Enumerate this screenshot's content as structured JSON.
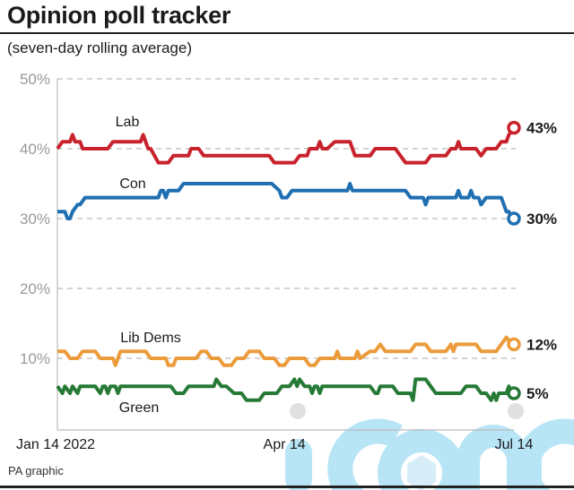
{
  "header": {
    "title": "Opinion poll tracker",
    "subtitle": "(seven-day rolling average)"
  },
  "footer": {
    "source": "PA graphic",
    "watermark": "iconic"
  },
  "chart_data": {
    "type": "line",
    "title": "Opinion poll tracker",
    "subtitle": "(seven-day rolling average)",
    "xlabel": "",
    "ylabel": "",
    "x_unit": "days since Jan 14 2022",
    "x_range": [
      0,
      181
    ],
    "ylim": [
      0,
      50
    ],
    "y_ticks": [
      10,
      20,
      30,
      40,
      50
    ],
    "y_tick_labels": [
      "10%",
      "20%",
      "30%",
      "40%",
      "50%"
    ],
    "x_ticks": [
      0,
      90,
      181
    ],
    "x_tick_labels": [
      "Jan 14 2022",
      "Apr 14",
      "Jul 14"
    ],
    "grid": "horizontal dashed",
    "legend": "inline labels",
    "series": [
      {
        "name": "Lab",
        "color": "#c8232c",
        "end_label": "43%",
        "end_value": 43,
        "points": [
          [
            0,
            40
          ],
          [
            2,
            41
          ],
          [
            5,
            41
          ],
          [
            6,
            42
          ],
          [
            7,
            41
          ],
          [
            9,
            41
          ],
          [
            10,
            40
          ],
          [
            20,
            40
          ],
          [
            22,
            41
          ],
          [
            33,
            41
          ],
          [
            34,
            42
          ],
          [
            35,
            41
          ],
          [
            36,
            40
          ],
          [
            37,
            40
          ],
          [
            40,
            38
          ],
          [
            44,
            38
          ],
          [
            46,
            39
          ],
          [
            52,
            39
          ],
          [
            53,
            40
          ],
          [
            56,
            40
          ],
          [
            58,
            39
          ],
          [
            84,
            39
          ],
          [
            86,
            38
          ],
          [
            94,
            38
          ],
          [
            96,
            39
          ],
          [
            99,
            39
          ],
          [
            100,
            40
          ],
          [
            103,
            40
          ],
          [
            104,
            41
          ],
          [
            105,
            40
          ],
          [
            107,
            40
          ],
          [
            110,
            41
          ],
          [
            116,
            41
          ],
          [
            118,
            39
          ],
          [
            124,
            39
          ],
          [
            126,
            40
          ],
          [
            134,
            40
          ],
          [
            136,
            39
          ],
          [
            138,
            38
          ],
          [
            146,
            38
          ],
          [
            148,
            39
          ],
          [
            154,
            39
          ],
          [
            156,
            40
          ],
          [
            158,
            40
          ],
          [
            159,
            41
          ],
          [
            160,
            40
          ],
          [
            166,
            40
          ],
          [
            168,
            39
          ],
          [
            170,
            40
          ],
          [
            174,
            40
          ],
          [
            176,
            41
          ],
          [
            178,
            41
          ],
          [
            179,
            42
          ],
          [
            181,
            43
          ]
        ]
      },
      {
        "name": "Con",
        "color": "#1f6fb2",
        "end_label": "30%",
        "end_value": 30,
        "points": [
          [
            0,
            31
          ],
          [
            3,
            31
          ],
          [
            4,
            30
          ],
          [
            5,
            30
          ],
          [
            6,
            31
          ],
          [
            8,
            32
          ],
          [
            9,
            32
          ],
          [
            11,
            33
          ],
          [
            40,
            33
          ],
          [
            41,
            34
          ],
          [
            42,
            34
          ],
          [
            43,
            33
          ],
          [
            44,
            34
          ],
          [
            48,
            34
          ],
          [
            50,
            35
          ],
          [
            85,
            35
          ],
          [
            88,
            34
          ],
          [
            89,
            33
          ],
          [
            91,
            33
          ],
          [
            93,
            34
          ],
          [
            115,
            34
          ],
          [
            116,
            35
          ],
          [
            117,
            34
          ],
          [
            138,
            34
          ],
          [
            140,
            33
          ],
          [
            145,
            33
          ],
          [
            146,
            32
          ],
          [
            147,
            33
          ],
          [
            158,
            33
          ],
          [
            159,
            34
          ],
          [
            160,
            33
          ],
          [
            163,
            33
          ],
          [
            164,
            34
          ],
          [
            165,
            33
          ],
          [
            167,
            33
          ],
          [
            168,
            32
          ],
          [
            170,
            33
          ],
          [
            176,
            33
          ],
          [
            177,
            32
          ],
          [
            178,
            31
          ],
          [
            179,
            31
          ],
          [
            180,
            30
          ],
          [
            181,
            30
          ]
        ]
      },
      {
        "name": "Lib Dems",
        "color": "#ec9b3b",
        "end_label": "12%",
        "end_value": 12,
        "points": [
          [
            0,
            11
          ],
          [
            3,
            11
          ],
          [
            5,
            10
          ],
          [
            8,
            10
          ],
          [
            10,
            11
          ],
          [
            15,
            11
          ],
          [
            17,
            10
          ],
          [
            22,
            10
          ],
          [
            23,
            9
          ],
          [
            24,
            10
          ],
          [
            25,
            11
          ],
          [
            35,
            11
          ],
          [
            37,
            10
          ],
          [
            43,
            10
          ],
          [
            44,
            9
          ],
          [
            46,
            9
          ],
          [
            47,
            10
          ],
          [
            55,
            10
          ],
          [
            57,
            11
          ],
          [
            59,
            11
          ],
          [
            61,
            10
          ],
          [
            64,
            10
          ],
          [
            66,
            9
          ],
          [
            69,
            9
          ],
          [
            71,
            10
          ],
          [
            74,
            10
          ],
          [
            76,
            11
          ],
          [
            80,
            11
          ],
          [
            82,
            10
          ],
          [
            86,
            10
          ],
          [
            88,
            9
          ],
          [
            90,
            9
          ],
          [
            92,
            10
          ],
          [
            96,
            10
          ],
          [
            98,
            10
          ],
          [
            100,
            9
          ],
          [
            102,
            9
          ],
          [
            104,
            10
          ],
          [
            110,
            10
          ],
          [
            111,
            11
          ],
          [
            112,
            10
          ],
          [
            118,
            10
          ],
          [
            119,
            11
          ],
          [
            120,
            10
          ],
          [
            124,
            11
          ],
          [
            126,
            11
          ],
          [
            128,
            12
          ],
          [
            130,
            11
          ],
          [
            140,
            11
          ],
          [
            142,
            12
          ],
          [
            146,
            12
          ],
          [
            148,
            11
          ],
          [
            154,
            11
          ],
          [
            156,
            12
          ],
          [
            157,
            11
          ],
          [
            158,
            12
          ],
          [
            166,
            12
          ],
          [
            168,
            11
          ],
          [
            174,
            11
          ],
          [
            176,
            12
          ],
          [
            178,
            13
          ],
          [
            180,
            12
          ],
          [
            181,
            12
          ]
        ]
      },
      {
        "name": "Green",
        "color": "#267a36",
        "end_label": "5%",
        "end_value": 5,
        "points": [
          [
            0,
            6
          ],
          [
            2,
            5
          ],
          [
            3,
            6
          ],
          [
            5,
            5
          ],
          [
            6,
            6
          ],
          [
            8,
            5
          ],
          [
            9,
            6
          ],
          [
            15,
            6
          ],
          [
            17,
            5
          ],
          [
            18,
            6
          ],
          [
            19,
            6
          ],
          [
            20,
            5
          ],
          [
            21,
            6
          ],
          [
            23,
            6
          ],
          [
            24,
            5
          ],
          [
            25,
            6
          ],
          [
            45,
            6
          ],
          [
            47,
            5
          ],
          [
            50,
            5
          ],
          [
            52,
            6
          ],
          [
            62,
            6
          ],
          [
            63,
            7
          ],
          [
            65,
            6
          ],
          [
            67,
            6
          ],
          [
            70,
            5
          ],
          [
            73,
            5
          ],
          [
            75,
            4
          ],
          [
            80,
            4
          ],
          [
            82,
            5
          ],
          [
            87,
            5
          ],
          [
            89,
            6
          ],
          [
            92,
            6
          ],
          [
            94,
            7
          ],
          [
            95,
            6
          ],
          [
            96,
            7
          ],
          [
            98,
            6
          ],
          [
            100,
            6
          ],
          [
            101,
            5
          ],
          [
            102,
            6
          ],
          [
            103,
            6
          ],
          [
            104,
            5
          ],
          [
            105,
            6
          ],
          [
            124,
            6
          ],
          [
            126,
            5
          ],
          [
            127,
            5
          ],
          [
            128,
            6
          ],
          [
            133,
            6
          ],
          [
            135,
            5
          ],
          [
            140,
            5
          ],
          [
            141,
            4
          ],
          [
            142,
            7
          ],
          [
            146,
            7
          ],
          [
            148,
            6
          ],
          [
            150,
            5
          ],
          [
            160,
            5
          ],
          [
            162,
            6
          ],
          [
            166,
            6
          ],
          [
            168,
            5
          ],
          [
            170,
            5
          ],
          [
            172,
            4
          ],
          [
            173,
            5
          ],
          [
            174,
            4
          ],
          [
            175,
            5
          ],
          [
            178,
            5
          ],
          [
            179,
            6
          ],
          [
            180,
            5
          ],
          [
            181,
            5
          ]
        ]
      }
    ]
  }
}
